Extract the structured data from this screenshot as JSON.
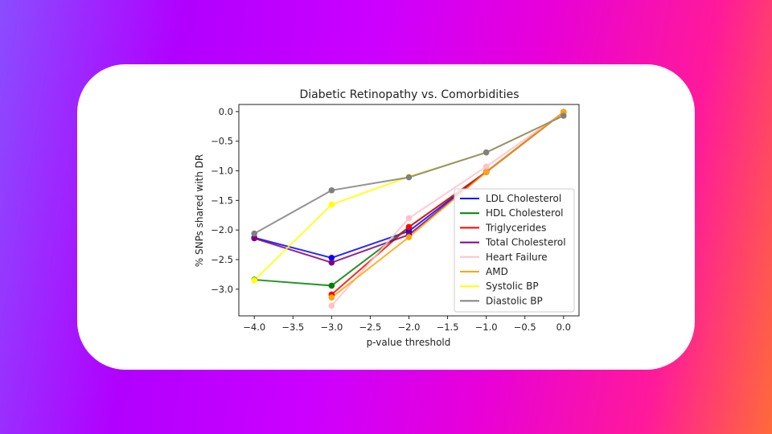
{
  "chart_data": {
    "type": "line",
    "title": "Diabetic Retinopathy vs. Comorbidities",
    "xlabel": "p-value threshold",
    "ylabel": "% SNPs shared with DR",
    "xlim": [
      -4.2,
      0.2
    ],
    "ylim": [
      -3.45,
      0.12
    ],
    "xticks": [
      -4.0,
      -3.5,
      -3.0,
      -2.5,
      -2.0,
      -1.5,
      -1.0,
      -0.5,
      0.0
    ],
    "xtick_labels": [
      "−4.0",
      "−3.5",
      "−3.0",
      "−2.5",
      "−2.0",
      "−1.5",
      "−1.0",
      "−0.5",
      "0.0"
    ],
    "yticks": [
      0.0,
      -0.5,
      -1.0,
      -1.5,
      -2.0,
      -2.5,
      -3.0
    ],
    "ytick_labels": [
      "0.0",
      "−0.5",
      "−1.0",
      "−1.5",
      "−2.0",
      "−2.5",
      "−3.0"
    ],
    "grid": false,
    "legend_position": "lower-right",
    "series": [
      {
        "name": "LDL Cholesterol",
        "color": "#0000ff",
        "x": [
          -4,
          -3,
          -2,
          -1,
          0
        ],
        "y": [
          -2.13,
          -2.47,
          -2.02,
          -1.02,
          -0.01
        ]
      },
      {
        "name": "HDL Cholesterol",
        "color": "#008000",
        "x": [
          -4,
          -3,
          -2,
          -1,
          0
        ],
        "y": [
          -2.84,
          -2.94,
          -1.95,
          -1.02,
          -0.01
        ]
      },
      {
        "name": "Triglycerides",
        "color": "#ff0000",
        "x": [
          -3,
          -2,
          -1,
          0
        ],
        "y": [
          -3.09,
          -1.95,
          -1.02,
          -0.01
        ]
      },
      {
        "name": "Total Cholesterol",
        "color": "#800080",
        "x": [
          -4,
          -3,
          -2,
          -1,
          0
        ],
        "y": [
          -2.14,
          -2.55,
          -2.08,
          -1.02,
          -0.01
        ]
      },
      {
        "name": "Heart Failure",
        "color": "#ffc0cb",
        "x": [
          -3,
          -2,
          -1,
          0
        ],
        "y": [
          -3.28,
          -1.8,
          -0.93,
          -0.01
        ]
      },
      {
        "name": "AMD",
        "color": "#ffa500",
        "x": [
          -3,
          -2,
          -1,
          0
        ],
        "y": [
          -3.14,
          -2.12,
          -1.02,
          -0.01
        ]
      },
      {
        "name": "Systolic BP",
        "color": "#ffff00",
        "x": [
          -4,
          -3,
          -2,
          -1,
          0
        ],
        "y": [
          -2.85,
          -1.57,
          -1.1,
          -0.69,
          -0.07
        ]
      },
      {
        "name": "Diastolic BP",
        "color": "#808080",
        "x": [
          -4,
          -3,
          -2,
          -1,
          0
        ],
        "y": [
          -2.06,
          -1.33,
          -1.11,
          -0.69,
          -0.07
        ]
      }
    ]
  }
}
